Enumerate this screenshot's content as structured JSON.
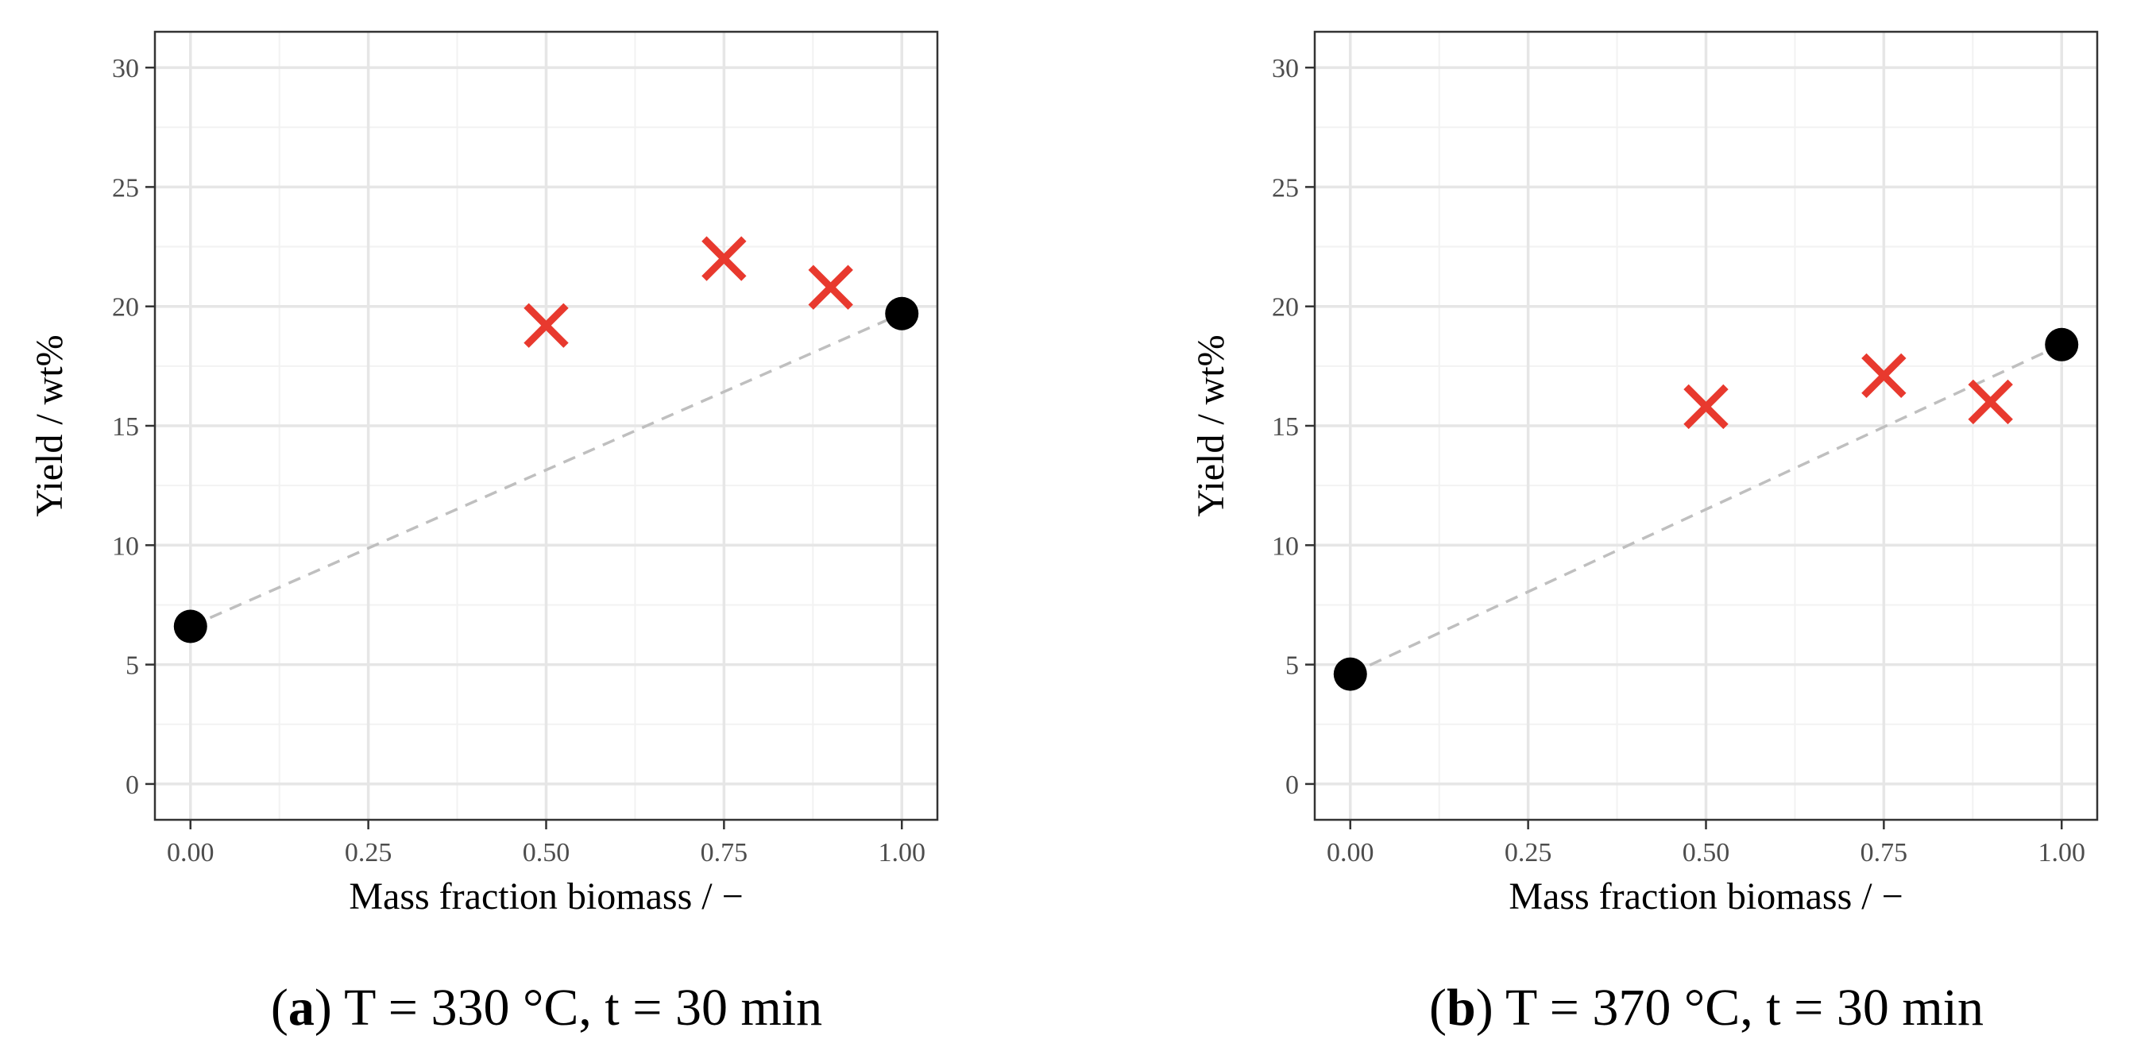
{
  "chart_data": [
    {
      "type": "scatter",
      "caption": {
        "open": "(",
        "letter": "a",
        "close": ")",
        "text": " T = 330 °C, t = 30 min"
      },
      "xlabel": "Mass fraction biomass / −",
      "ylabel": "Yield / wt%",
      "xlim": [
        -0.05,
        1.05
      ],
      "ylim": [
        -1.5,
        31.5
      ],
      "x_ticks": [
        0,
        0.25,
        0.5,
        0.75,
        1.0
      ],
      "x_tick_labels": [
        "0.00",
        "0.25",
        "0.50",
        "0.75",
        "1.00"
      ],
      "y_ticks": [
        0,
        5,
        10,
        15,
        20,
        25,
        30
      ],
      "y_tick_labels": [
        "0",
        "5",
        "10",
        "15",
        "20",
        "25",
        "30"
      ],
      "grid": true,
      "series": [
        {
          "marker": "circle",
          "color": "#000000",
          "x": [
            0.0,
            1.0
          ],
          "y": [
            6.6,
            19.7
          ]
        },
        {
          "marker": "cross",
          "color": "#e8392e",
          "x": [
            0.5,
            0.75,
            0.9
          ],
          "y": [
            19.2,
            22.0,
            20.8
          ]
        }
      ],
      "reference_line": {
        "style": "dashed",
        "color": "#bfbfbf",
        "x": [
          0.0,
          1.0
        ],
        "y": [
          6.6,
          19.7
        ]
      }
    },
    {
      "type": "scatter",
      "caption": {
        "open": "(",
        "letter": "b",
        "close": ")",
        "text": " T = 370 °C, t = 30 min"
      },
      "xlabel": "Mass fraction biomass / −",
      "ylabel": "Yield / wt%",
      "xlim": [
        -0.05,
        1.05
      ],
      "ylim": [
        -1.5,
        31.5
      ],
      "x_ticks": [
        0,
        0.25,
        0.5,
        0.75,
        1.0
      ],
      "x_tick_labels": [
        "0.00",
        "0.25",
        "0.50",
        "0.75",
        "1.00"
      ],
      "y_ticks": [
        0,
        5,
        10,
        15,
        20,
        25,
        30
      ],
      "y_tick_labels": [
        "0",
        "5",
        "10",
        "15",
        "20",
        "25",
        "30"
      ],
      "grid": true,
      "series": [
        {
          "marker": "circle",
          "color": "#000000",
          "x": [
            0.0,
            1.0
          ],
          "y": [
            4.6,
            18.4
          ]
        },
        {
          "marker": "cross",
          "color": "#e8392e",
          "x": [
            0.5,
            0.75,
            0.9
          ],
          "y": [
            15.8,
            17.1,
            16.0
          ]
        }
      ],
      "reference_line": {
        "style": "dashed",
        "color": "#bfbfbf",
        "x": [
          0.0,
          1.0
        ],
        "y": [
          4.6,
          18.4
        ]
      }
    }
  ]
}
